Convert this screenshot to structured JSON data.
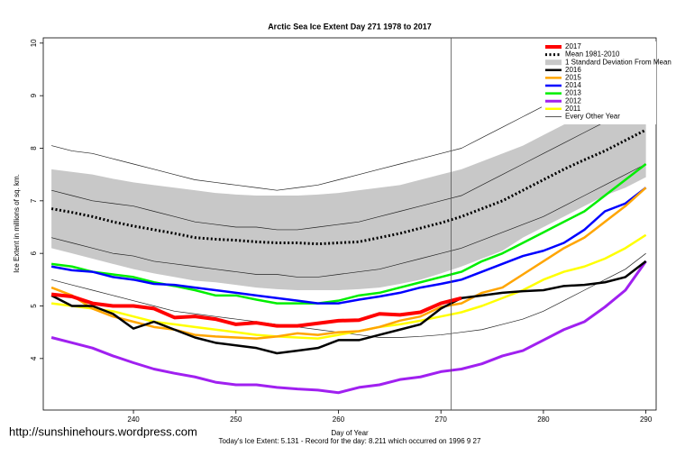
{
  "chart_data": {
    "type": "line",
    "title": "Arctic Sea Ice Extent Day 271 1978 to 2017",
    "x_label": "Day of Year",
    "y_label": "Ice Extent in millions of sq. km.",
    "footer": "Today's Ice Extent: 5.131  - Record for the day: 8.211 which occurred on 1996 9 27",
    "watermark": "http://sunshinehours.wordpress.com",
    "xlim": [
      231.2,
      291
    ],
    "ylim": [
      3.02,
      10.1
    ],
    "xticks": [
      240,
      250,
      260,
      270,
      280,
      290
    ],
    "yticks": [
      4,
      5,
      6,
      7,
      8,
      9,
      10
    ],
    "vline": 271,
    "x": [
      232,
      234,
      236,
      238,
      240,
      242,
      244,
      246,
      248,
      250,
      252,
      254,
      256,
      258,
      260,
      262,
      264,
      266,
      268,
      270,
      272,
      274,
      276,
      278,
      280,
      282,
      284,
      286,
      288,
      290
    ],
    "series": [
      {
        "name": "2017",
        "color": "#ff0000",
        "width": 4,
        "values": [
          5.22,
          5.18,
          5.05,
          5.0,
          5.0,
          4.95,
          4.78,
          4.8,
          4.75,
          4.65,
          4.68,
          4.62,
          4.62,
          4.67,
          4.72,
          4.73,
          4.85,
          4.83,
          4.88,
          5.05,
          5.15,
          null,
          null,
          null,
          null,
          null,
          null,
          null,
          null,
          null
        ]
      },
      {
        "name": "Mean 1981-2010",
        "color": "#000000",
        "width": 3,
        "dash": true,
        "values": [
          6.85,
          6.78,
          6.7,
          6.6,
          6.52,
          6.45,
          6.38,
          6.3,
          6.27,
          6.25,
          6.22,
          6.2,
          6.2,
          6.18,
          6.2,
          6.22,
          6.3,
          6.38,
          6.48,
          6.58,
          6.7,
          6.85,
          7.0,
          7.2,
          7.4,
          7.6,
          7.78,
          7.95,
          8.15,
          8.35
        ]
      },
      {
        "name": "1 Standard Deviation From Mean",
        "color": "#c8c8c8",
        "band": true,
        "values": [
          7.6,
          7.55,
          7.5,
          7.42,
          7.35,
          7.3,
          7.25,
          7.2,
          7.15,
          7.12,
          7.1,
          7.1,
          7.1,
          7.12,
          7.15,
          7.2,
          7.25,
          7.3,
          7.4,
          7.5,
          7.6,
          7.75,
          7.9,
          8.05,
          8.25,
          8.45,
          8.65,
          8.85,
          9.05,
          9.25
        ],
        "lower": [
          6.1,
          6.0,
          5.9,
          5.8,
          5.7,
          5.62,
          5.55,
          5.48,
          5.45,
          5.4,
          5.35,
          5.32,
          5.3,
          5.3,
          5.3,
          5.32,
          5.35,
          5.42,
          5.5,
          5.62,
          5.75,
          5.9,
          6.05,
          6.3,
          6.5,
          6.7,
          6.9,
          7.1,
          7.25,
          7.45
        ]
      },
      {
        "name": "2016",
        "color": "#000000",
        "width": 2.5,
        "values": [
          5.2,
          5.0,
          5.0,
          4.85,
          4.57,
          4.7,
          4.55,
          4.4,
          4.3,
          4.25,
          4.2,
          4.1,
          4.15,
          4.2,
          4.35,
          4.35,
          4.45,
          4.55,
          4.65,
          4.95,
          5.15,
          5.2,
          5.25,
          5.28,
          5.3,
          5.38,
          5.4,
          5.45,
          5.55,
          5.85
        ]
      },
      {
        "name": "2015",
        "color": "#ffa500",
        "width": 2.5,
        "values": [
          5.35,
          5.2,
          4.95,
          4.8,
          4.7,
          4.6,
          4.55,
          4.45,
          4.42,
          4.4,
          4.38,
          4.42,
          4.48,
          4.45,
          4.5,
          4.52,
          4.6,
          4.72,
          4.8,
          4.98,
          5.05,
          5.25,
          5.35,
          5.6,
          5.85,
          6.1,
          6.3,
          6.6,
          6.9,
          7.25
        ]
      },
      {
        "name": "2014",
        "color": "#0000ff",
        "width": 2.5,
        "values": [
          5.75,
          5.68,
          5.65,
          5.55,
          5.5,
          5.42,
          5.4,
          5.35,
          5.3,
          5.25,
          5.2,
          5.15,
          5.1,
          5.05,
          5.05,
          5.12,
          5.18,
          5.25,
          5.35,
          5.42,
          5.5,
          5.65,
          5.8,
          5.95,
          6.05,
          6.2,
          6.45,
          6.8,
          6.95,
          7.25
        ]
      },
      {
        "name": "2013",
        "color": "#00ee00",
        "width": 2.5,
        "values": [
          5.8,
          5.75,
          5.65,
          5.6,
          5.55,
          5.45,
          5.38,
          5.3,
          5.2,
          5.2,
          5.12,
          5.05,
          5.05,
          5.05,
          5.1,
          5.2,
          5.25,
          5.35,
          5.45,
          5.55,
          5.65,
          5.85,
          6.0,
          6.2,
          6.4,
          6.6,
          6.8,
          7.1,
          7.4,
          7.7
        ]
      },
      {
        "name": "2012",
        "color": "#a020f0",
        "width": 3,
        "values": [
          4.4,
          4.3,
          4.2,
          4.05,
          3.92,
          3.8,
          3.72,
          3.65,
          3.55,
          3.5,
          3.5,
          3.45,
          3.42,
          3.4,
          3.35,
          3.45,
          3.5,
          3.6,
          3.65,
          3.75,
          3.8,
          3.9,
          4.05,
          4.15,
          4.35,
          4.55,
          4.7,
          4.98,
          5.3,
          5.85
        ]
      },
      {
        "name": "2011",
        "color": "#ffff00",
        "width": 2.5,
        "values": [
          5.05,
          5.0,
          4.95,
          4.9,
          4.8,
          4.7,
          4.65,
          4.6,
          4.55,
          4.5,
          4.45,
          4.42,
          4.4,
          4.38,
          4.45,
          4.52,
          4.6,
          4.65,
          4.72,
          4.8,
          4.88,
          5.0,
          5.15,
          5.3,
          5.5,
          5.65,
          5.75,
          5.9,
          6.1,
          6.35
        ]
      },
      {
        "name": "Every Other Year",
        "color": "#222222",
        "width": 0.7,
        "values": [
          8.05,
          7.95,
          7.9,
          7.8,
          7.7,
          7.6,
          7.5,
          7.4,
          7.35,
          7.3,
          7.25,
          7.2,
          7.25,
          7.3,
          7.4,
          7.5,
          7.6,
          7.7,
          7.8,
          7.9,
          8.0,
          8.2,
          8.4,
          8.6,
          8.8,
          9.0,
          9.1,
          9.2,
          9.3,
          9.4
        ]
      }
    ],
    "other_years": [
      [
        7.2,
        7.1,
        7.0,
        6.95,
        6.9,
        6.8,
        6.7,
        6.6,
        6.55,
        6.5,
        6.5,
        6.45,
        6.45,
        6.5,
        6.55,
        6.6,
        6.7,
        6.8,
        6.9,
        7.0,
        7.1,
        7.3,
        7.5,
        7.7,
        7.9,
        8.1,
        8.3,
        8.5,
        8.7,
        8.9
      ],
      [
        6.3,
        6.2,
        6.1,
        6.0,
        5.95,
        5.85,
        5.8,
        5.75,
        5.7,
        5.65,
        5.6,
        5.6,
        5.55,
        5.55,
        5.6,
        5.65,
        5.7,
        5.8,
        5.9,
        6.0,
        6.1,
        6.25,
        6.4,
        6.55,
        6.7,
        6.9,
        7.1,
        7.3,
        7.5,
        7.7
      ],
      [
        5.5,
        5.4,
        5.3,
        5.2,
        5.1,
        5.0,
        4.9,
        4.85,
        4.8,
        4.75,
        4.7,
        4.65,
        4.6,
        4.55,
        4.5,
        4.45,
        4.4,
        4.4,
        4.42,
        4.45,
        4.5,
        4.55,
        4.65,
        4.75,
        4.9,
        5.1,
        5.3,
        5.5,
        5.7,
        6.0
      ]
    ]
  }
}
